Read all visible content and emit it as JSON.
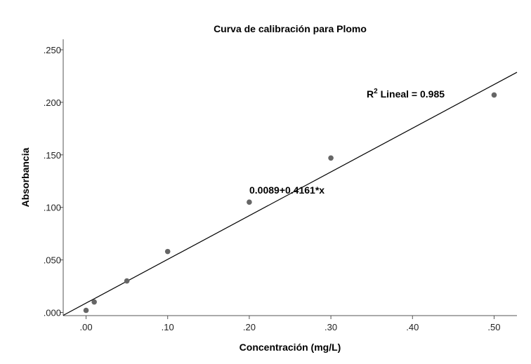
{
  "chart_data": {
    "type": "scatter",
    "title": "Curva de calibración para Plomo",
    "xlabel": "Concentración (mg/L)",
    "ylabel": "Absorbancia",
    "xlim": [
      -0.028,
      0.528
    ],
    "ylim": [
      -0.003,
      0.26
    ],
    "xticks": [
      0.0,
      0.1,
      0.2,
      0.3,
      0.4,
      0.5
    ],
    "xtick_labels": [
      ".00",
      ".10",
      ".20",
      ".30",
      ".40",
      ".50"
    ],
    "yticks": [
      0.0,
      0.05,
      0.1,
      0.15,
      0.2,
      0.25
    ],
    "ytick_labels": [
      ".000",
      ".050",
      ".100",
      ".150",
      ".200",
      ".250"
    ],
    "points": [
      {
        "x": 0.0,
        "y": 0.002
      },
      {
        "x": 0.01,
        "y": 0.01
      },
      {
        "x": 0.05,
        "y": 0.03
      },
      {
        "x": 0.1,
        "y": 0.058
      },
      {
        "x": 0.2,
        "y": 0.105
      },
      {
        "x": 0.3,
        "y": 0.147
      },
      {
        "x": 0.5,
        "y": 0.207
      }
    ],
    "fit": {
      "intercept": 0.0089,
      "slope": 0.4161
    },
    "annotations": {
      "r2_prefix": "R",
      "r2_sup": "2",
      "r2_text": " Lineal = 0.985",
      "equation": "0.0089+0.4161*x"
    },
    "grid": false,
    "colors": {
      "points": "#666666",
      "line": "#000000",
      "axis": "#555555"
    }
  }
}
